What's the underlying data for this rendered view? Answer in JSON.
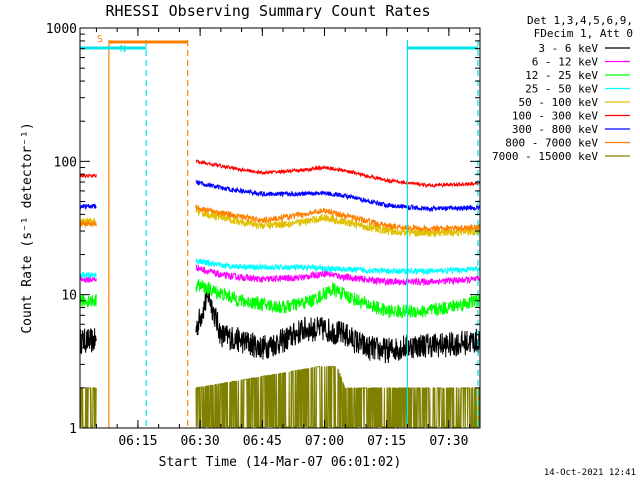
{
  "chart_data": {
    "type": "line",
    "title": "RHESSI Observing Summary Count Rates",
    "xlabel": "Start Time (14-Mar-07 06:01:02)",
    "ylabel": "Count Rate (s⁻¹ detector⁻¹)",
    "ylog": true,
    "ylim": [
      1,
      1000
    ],
    "xlim": [
      "06:01:02",
      "07:37:30"
    ],
    "x_ticks": [
      "06:15",
      "06:30",
      "06:45",
      "07:00",
      "07:15",
      "07:30"
    ],
    "y_ticks": [
      "1",
      "10",
      "100",
      "1000"
    ],
    "timestamp": "14-Oct-2021 12:41",
    "legend_header": [
      "Det 1,3,4,5,6,9,",
      "FDecim 1, Att 0"
    ],
    "flags": [
      {
        "label": "S",
        "color": "#ff8000",
        "start": "06:08",
        "end": "06:27"
      },
      {
        "label": "N",
        "color": "#00e5e5",
        "start": "06:01",
        "end": "06:17"
      },
      {
        "label": "",
        "color": "#00e5e5",
        "start": "07:20",
        "end": "07:37"
      }
    ],
    "vlines": [
      {
        "time": "06:08",
        "color": "#ff8000",
        "style": "solid"
      },
      {
        "time": "06:27",
        "color": "#ff8000",
        "style": "dashed"
      },
      {
        "time": "06:17",
        "color": "#00e5e5",
        "style": "dashed"
      },
      {
        "time": "07:20",
        "color": "#00e5e5",
        "style": "solid"
      },
      {
        "time": "07:37",
        "color": "#00e5e5",
        "style": "dashed"
      }
    ],
    "data_gap": [
      "06:05",
      "06:29"
    ],
    "series": [
      {
        "name": "3 - 6 keV",
        "color": "#000000",
        "before_gap": 4.5,
        "points": [
          [
            "06:29",
            5.5
          ],
          [
            "06:32",
            10
          ],
          [
            "06:35",
            5
          ],
          [
            "06:40",
            4.5
          ],
          [
            "06:45",
            4
          ],
          [
            "06:50",
            4.5
          ],
          [
            "06:55",
            5.5
          ],
          [
            "07:00",
            5.5
          ],
          [
            "07:05",
            5
          ],
          [
            "07:10",
            4
          ],
          [
            "07:15",
            3.8
          ],
          [
            "07:20",
            4.1
          ],
          [
            "07:25",
            4.2
          ],
          [
            "07:30",
            4.2
          ],
          [
            "07:37",
            4.5
          ]
        ]
      },
      {
        "name": "6 - 12 keV",
        "color": "#ff00ff",
        "before_gap": 13,
        "points": [
          [
            "06:29",
            16
          ],
          [
            "06:35",
            14
          ],
          [
            "06:45",
            13
          ],
          [
            "06:55",
            13.5
          ],
          [
            "07:00",
            14.5
          ],
          [
            "07:05",
            13.5
          ],
          [
            "07:15",
            12.5
          ],
          [
            "07:25",
            12.5
          ],
          [
            "07:37",
            13
          ]
        ]
      },
      {
        "name": "12 - 25 keV",
        "color": "#00ff00",
        "before_gap": 9,
        "points": [
          [
            "06:29",
            12
          ],
          [
            "06:32",
            11
          ],
          [
            "06:40",
            9
          ],
          [
            "06:50",
            8
          ],
          [
            "06:57",
            9
          ],
          [
            "07:02",
            11
          ],
          [
            "07:08",
            9
          ],
          [
            "07:15",
            7.5
          ],
          [
            "07:25",
            7.5
          ],
          [
            "07:37",
            9
          ]
        ]
      },
      {
        "name": "25 - 50 keV",
        "color": "#00ffff",
        "before_gap": 14,
        "points": [
          [
            "06:29",
            18
          ],
          [
            "06:35",
            16.5
          ],
          [
            "06:45",
            16
          ],
          [
            "06:55",
            16
          ],
          [
            "07:05",
            15.5
          ],
          [
            "07:15",
            15
          ],
          [
            "07:25",
            15
          ],
          [
            "07:37",
            15.5
          ]
        ]
      },
      {
        "name": "50 - 100 keV",
        "color": "#e0c000",
        "before_gap": 35,
        "points": [
          [
            "06:29",
            42
          ],
          [
            "06:35",
            38
          ],
          [
            "06:45",
            33
          ],
          [
            "06:55",
            35
          ],
          [
            "07:00",
            38
          ],
          [
            "07:05",
            35
          ],
          [
            "07:15",
            30
          ],
          [
            "07:25",
            29
          ],
          [
            "07:37",
            30
          ]
        ]
      },
      {
        "name": "100 - 300 keV",
        "color": "#ff0000",
        "before_gap": 78,
        "points": [
          [
            "06:29",
            100
          ],
          [
            "06:35",
            92
          ],
          [
            "06:45",
            82
          ],
          [
            "06:55",
            86
          ],
          [
            "07:00",
            90
          ],
          [
            "07:05",
            85
          ],
          [
            "07:15",
            72
          ],
          [
            "07:25",
            66
          ],
          [
            "07:37",
            68
          ]
        ]
      },
      {
        "name": "300 - 800 keV",
        "color": "#0000ff",
        "before_gap": 46,
        "points": [
          [
            "06:29",
            70
          ],
          [
            "06:35",
            63
          ],
          [
            "06:45",
            57
          ],
          [
            "06:55",
            57
          ],
          [
            "07:00",
            58
          ],
          [
            "07:05",
            55
          ],
          [
            "07:15",
            47
          ],
          [
            "07:25",
            44
          ],
          [
            "07:37",
            45
          ]
        ]
      },
      {
        "name": "800 - 7000 keV",
        "color": "#ff8000",
        "before_gap": 34,
        "points": [
          [
            "06:29",
            45
          ],
          [
            "06:35",
            41
          ],
          [
            "06:45",
            36
          ],
          [
            "06:55",
            40
          ],
          [
            "07:00",
            43
          ],
          [
            "07:05",
            39
          ],
          [
            "07:15",
            33
          ],
          [
            "07:25",
            31
          ],
          [
            "07:37",
            32
          ]
        ]
      },
      {
        "name": "7000 - 15000 keV",
        "color": "#808000",
        "before_gap": 2,
        "points": [
          [
            "06:29",
            2
          ],
          [
            "06:59",
            2.9
          ],
          [
            "07:03",
            2.9
          ],
          [
            "07:05",
            2
          ],
          [
            "07:37",
            2
          ]
        ]
      }
    ]
  }
}
